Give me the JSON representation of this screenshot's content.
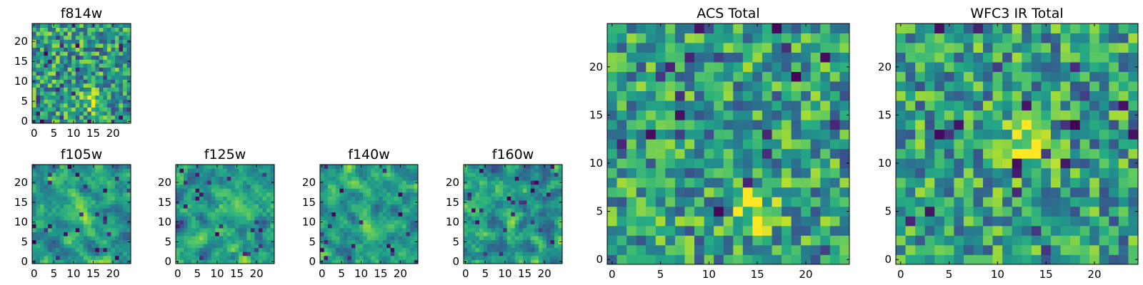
{
  "chart_data": [
    {
      "type": "heatmap",
      "title": "f814w",
      "n": 25,
      "seed": 814,
      "blob": [
        15,
        5
      ],
      "blobStrength": 0.35,
      "smooth": 0,
      "xticks": [
        0,
        5,
        10,
        15,
        20
      ],
      "yticks": [
        0,
        5,
        10,
        15,
        20
      ],
      "xlim": [
        0,
        24
      ],
      "ylim": [
        0,
        24
      ],
      "colormap": "viridis"
    },
    {
      "type": "heatmap",
      "title": "f105w",
      "n": 25,
      "seed": 105,
      "blob": [
        12,
        11
      ],
      "blobStrength": 0.15,
      "smooth": 1,
      "xticks": [
        0,
        5,
        10,
        15,
        20
      ],
      "yticks": [
        0,
        5,
        10,
        15,
        20
      ],
      "xlim": [
        0,
        24
      ],
      "ylim": [
        0,
        24
      ],
      "colormap": "viridis"
    },
    {
      "type": "heatmap",
      "title": "f125w",
      "n": 25,
      "seed": 125,
      "blob": [
        12,
        11
      ],
      "blobStrength": 0.15,
      "smooth": 1,
      "xticks": [
        0,
        5,
        10,
        15,
        20
      ],
      "yticks": [
        0,
        5,
        10,
        15,
        20
      ],
      "xlim": [
        0,
        24
      ],
      "ylim": [
        0,
        24
      ],
      "colormap": "viridis"
    },
    {
      "type": "heatmap",
      "title": "f140w",
      "n": 25,
      "seed": 140,
      "blob": [
        12,
        11
      ],
      "blobStrength": 0.12,
      "smooth": 1,
      "xticks": [
        0,
        5,
        10,
        15,
        20
      ],
      "yticks": [
        0,
        5,
        10,
        15,
        20
      ],
      "xlim": [
        0,
        24
      ],
      "ylim": [
        0,
        24
      ],
      "colormap": "viridis"
    },
    {
      "type": "heatmap",
      "title": "f160w",
      "n": 25,
      "seed": 160,
      "blob": [
        12,
        11
      ],
      "blobStrength": 0.12,
      "smooth": 1,
      "xticks": [
        0,
        5,
        10,
        15,
        20
      ],
      "yticks": [
        0,
        5,
        10,
        15,
        20
      ],
      "xlim": [
        0,
        24
      ],
      "ylim": [
        0,
        24
      ],
      "colormap": "viridis"
    },
    {
      "type": "heatmap",
      "title": "ACS Total",
      "n": 25,
      "seed": 901,
      "blob": [
        15,
        5
      ],
      "blobStrength": 0.35,
      "smooth": 0,
      "xticks": [
        0,
        5,
        10,
        15,
        20
      ],
      "yticks": [
        0,
        5,
        10,
        15,
        20
      ],
      "xlim": [
        0,
        24
      ],
      "ylim": [
        0,
        24
      ],
      "colormap": "viridis"
    },
    {
      "type": "heatmap",
      "title": "WFC3 IR Total",
      "n": 25,
      "seed": 902,
      "blob": [
        13,
        12
      ],
      "blobStrength": 0.4,
      "smooth": 0,
      "xticks": [
        0,
        5,
        10,
        15,
        20
      ],
      "yticks": [
        0,
        5,
        10,
        15,
        20
      ],
      "xlim": [
        0,
        24
      ],
      "ylim": [
        0,
        24
      ],
      "colormap": "viridis"
    }
  ]
}
